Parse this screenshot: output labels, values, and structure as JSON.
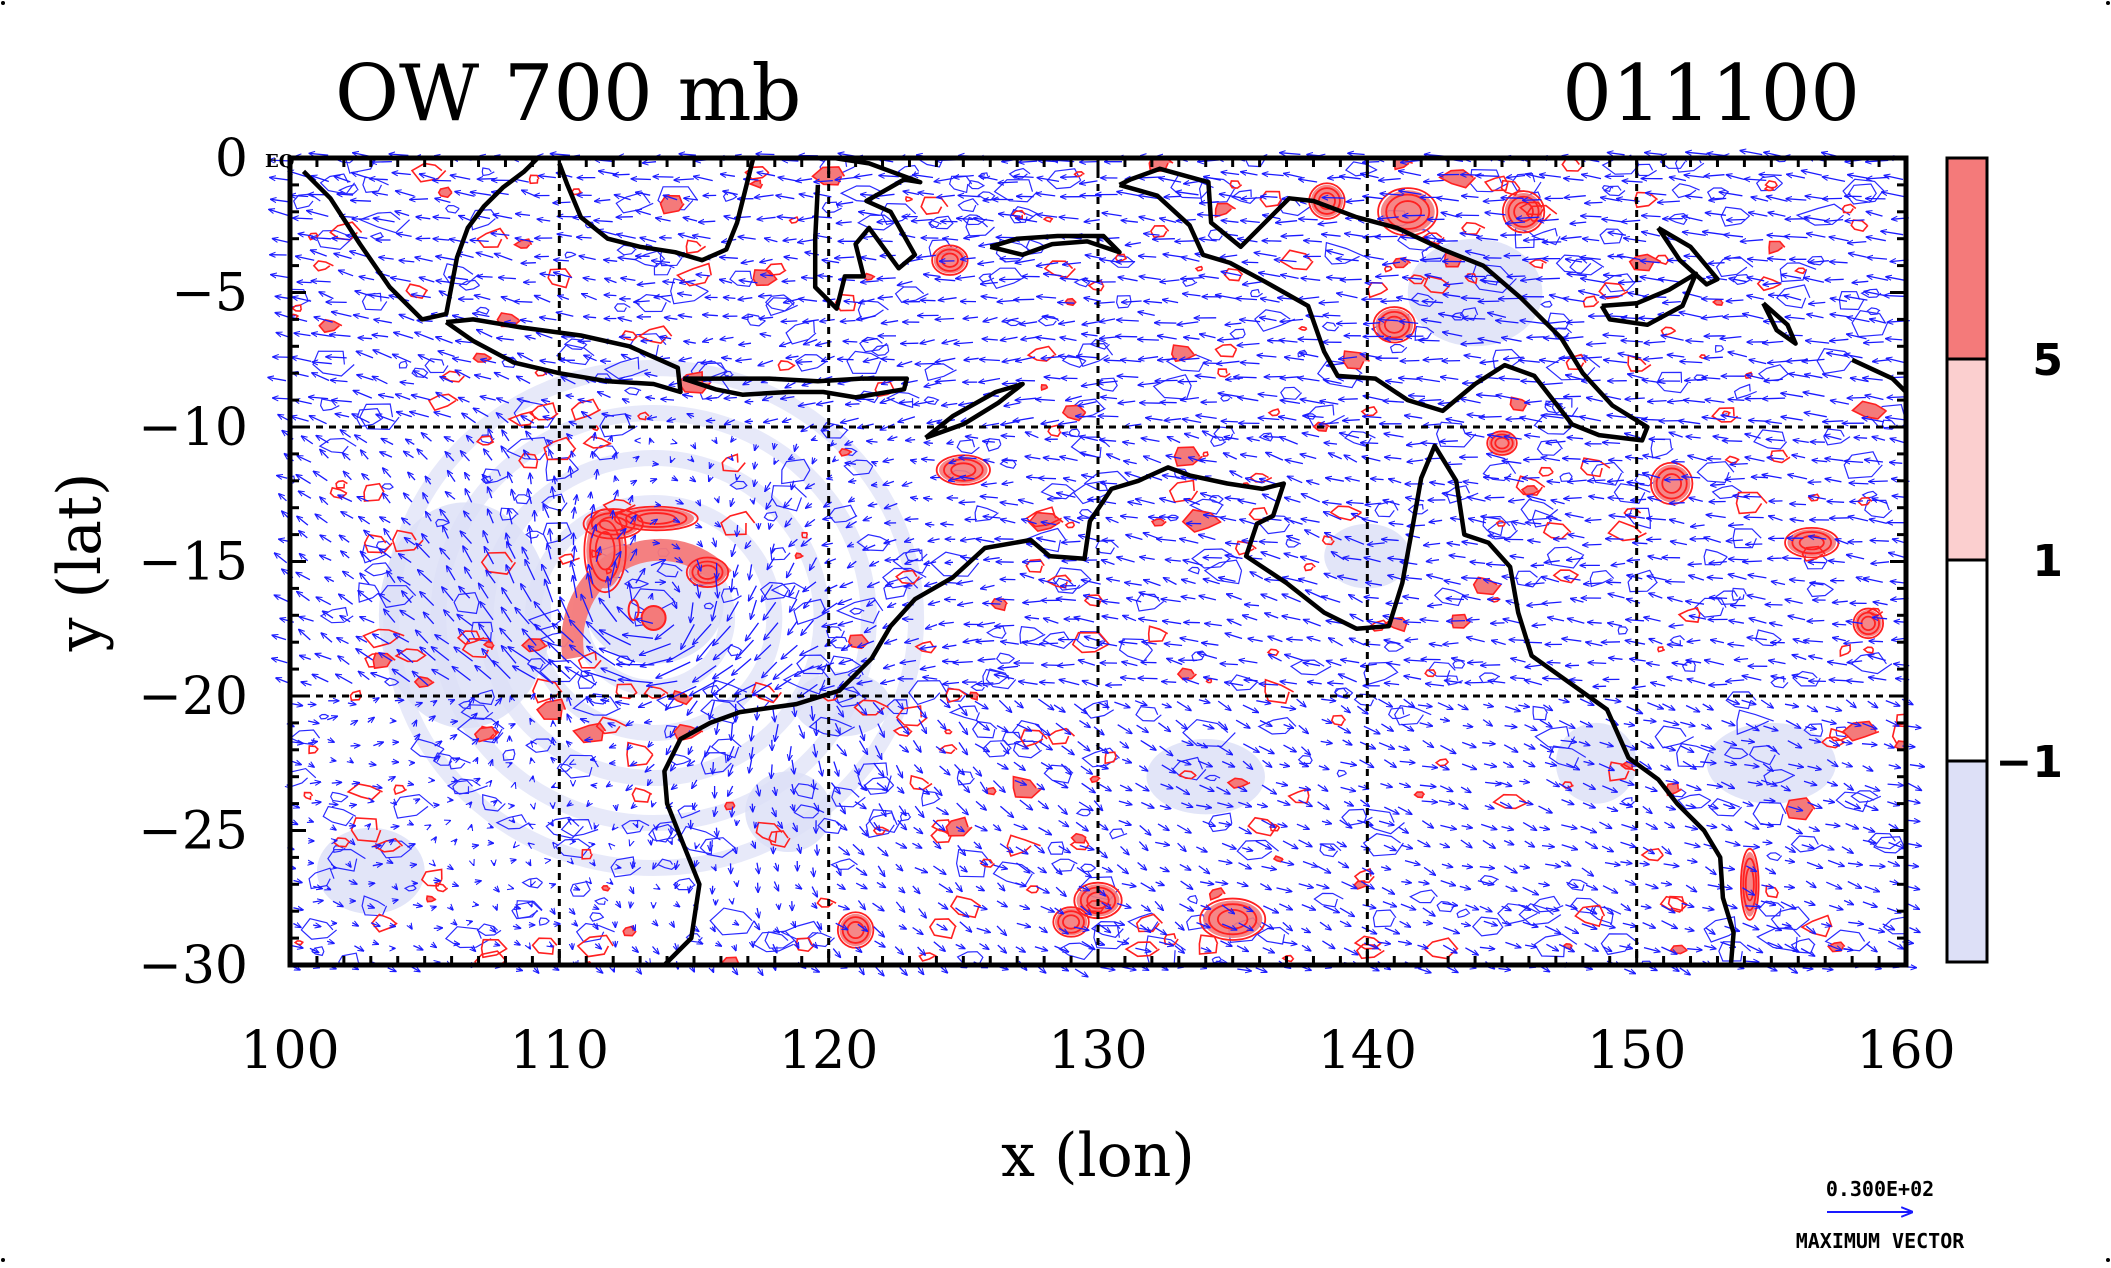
{
  "chart_data": {
    "type": "map",
    "title_left": "OW 700 mb",
    "title_right": "011100",
    "xlabel": "x (lon)",
    "ylabel": "y (lat)",
    "xlim": [
      100,
      160
    ],
    "ylim": [
      -30,
      0
    ],
    "x_ticks": [
      {
        "value": 100,
        "label": "100"
      },
      {
        "value": 110,
        "label": "110"
      },
      {
        "value": 120,
        "label": "120"
      },
      {
        "value": 130,
        "label": "130"
      },
      {
        "value": 140,
        "label": "140"
      },
      {
        "value": 150,
        "label": "150"
      },
      {
        "value": 160,
        "label": "160"
      }
    ],
    "y_ticks": [
      {
        "value": 0,
        "label": "0"
      },
      {
        "value": -5,
        "label": "−5"
      },
      {
        "value": -10,
        "label": "−10"
      },
      {
        "value": -15,
        "label": "−15"
      },
      {
        "value": -20,
        "label": "−20"
      },
      {
        "value": -25,
        "label": "−25"
      },
      {
        "value": -30,
        "label": "−30"
      }
    ],
    "axis_corner_label": "EQ",
    "grid": true,
    "colorbar": {
      "levels": [
        {
          "value": 5,
          "label": "5"
        },
        {
          "value": 1,
          "label": "1"
        },
        {
          "value": -1,
          "label": "−1"
        }
      ],
      "colors": [
        "#f47a7a",
        "#fbcfcf",
        "#ffffff",
        "#dde0f7"
      ]
    },
    "vector_reference": {
      "value_label": "0.300E+02",
      "caption": "MAXIMUM VECTOR"
    },
    "cyclone_center": {
      "lon": 113.5,
      "lat": -17.1
    },
    "colors": {
      "vectors": "#1a1aff",
      "positive_contours": "#ff2020",
      "negative_contours": "#2a2aff",
      "coastline": "#000000",
      "positive_fill": "#f47a7a",
      "negative_fill": "#dde0f7"
    },
    "coastline_segments": [
      {
        "name": "sumatra-malaysia",
        "points": [
          [
            100.5,
            -0.5
          ],
          [
            101.5,
            -1.5
          ],
          [
            102.6,
            -3.2
          ],
          [
            103.7,
            -4.8
          ],
          [
            104.9,
            -6.0
          ],
          [
            105.8,
            -5.8
          ],
          [
            106.2,
            -3.7
          ],
          [
            106.6,
            -2.6
          ],
          [
            107.2,
            -1.8
          ],
          [
            107.9,
            -1.1
          ],
          [
            108.7,
            -0.5
          ],
          [
            109.2,
            0
          ]
        ]
      },
      {
        "name": "borneo-south",
        "points": [
          [
            110,
            -0.2
          ],
          [
            110.3,
            -1.0
          ],
          [
            110.8,
            -2.2
          ],
          [
            111.8,
            -3.0
          ],
          [
            113.0,
            -3.3
          ],
          [
            114.3,
            -3.5
          ],
          [
            115.3,
            -3.8
          ],
          [
            116.2,
            -3.4
          ],
          [
            116.6,
            -2.4
          ],
          [
            116.9,
            -1.2
          ],
          [
            117.2,
            0
          ]
        ]
      },
      {
        "name": "java",
        "points": [
          [
            105.8,
            -6.1
          ],
          [
            106.8,
            -6.8
          ],
          [
            108.3,
            -7.6
          ],
          [
            110.0,
            -8.0
          ],
          [
            111.8,
            -8.3
          ],
          [
            113.5,
            -8.4
          ],
          [
            114.5,
            -8.7
          ],
          [
            114.4,
            -7.8
          ],
          [
            112.6,
            -7.0
          ],
          [
            110.8,
            -6.6
          ],
          [
            108.6,
            -6.3
          ],
          [
            106.8,
            -6.0
          ],
          [
            105.8,
            -6.1
          ]
        ]
      },
      {
        "name": "bali-lombok-sumbawa",
        "points": [
          [
            114.6,
            -8.2
          ],
          [
            115.8,
            -8.6
          ],
          [
            116.8,
            -8.8
          ],
          [
            118.5,
            -8.7
          ],
          [
            119.8,
            -8.7
          ],
          [
            121.0,
            -8.9
          ],
          [
            122.8,
            -8.6
          ],
          [
            122.9,
            -8.2
          ],
          [
            121.2,
            -8.2
          ],
          [
            119.6,
            -8.3
          ],
          [
            117.8,
            -8.2
          ],
          [
            116.1,
            -8.2
          ],
          [
            114.6,
            -8.2
          ]
        ]
      },
      {
        "name": "sulawesi",
        "points": [
          [
            119.6,
            -1.0
          ],
          [
            119.5,
            -3.0
          ],
          [
            119.5,
            -4.8
          ],
          [
            120.3,
            -5.6
          ],
          [
            120.6,
            -4.4
          ],
          [
            121.3,
            -4.4
          ],
          [
            121.0,
            -3.2
          ],
          [
            121.5,
            -2.6
          ],
          [
            122.6,
            -4.1
          ],
          [
            123.2,
            -3.6
          ],
          [
            122.3,
            -2.0
          ],
          [
            121.4,
            -1.6
          ],
          [
            122.8,
            -0.8
          ],
          [
            123.4,
            -0.9
          ],
          [
            121.5,
            -0.2
          ],
          [
            120.2,
            0
          ]
        ]
      },
      {
        "name": "timor",
        "points": [
          [
            123.6,
            -10.4
          ],
          [
            124.6,
            -9.6
          ],
          [
            126.2,
            -8.7
          ],
          [
            127.2,
            -8.4
          ],
          [
            126.3,
            -9.1
          ],
          [
            125.0,
            -9.9
          ],
          [
            123.6,
            -10.4
          ]
        ]
      },
      {
        "name": "seram-buru",
        "points": [
          [
            126.0,
            -3.3
          ],
          [
            127.2,
            -3.6
          ],
          [
            128.3,
            -3.2
          ],
          [
            129.6,
            -3.1
          ],
          [
            130.8,
            -3.5
          ],
          [
            130.2,
            -2.9
          ],
          [
            128.5,
            -2.9
          ],
          [
            127.0,
            -3.0
          ],
          [
            126.0,
            -3.3
          ]
        ]
      },
      {
        "name": "new-guinea",
        "points": [
          [
            130.8,
            -1.0
          ],
          [
            132.2,
            -1.4
          ],
          [
            133.4,
            -2.5
          ],
          [
            133.9,
            -3.6
          ],
          [
            134.9,
            -3.9
          ],
          [
            136.2,
            -4.6
          ],
          [
            137.8,
            -5.5
          ],
          [
            138.4,
            -7.2
          ],
          [
            138.9,
            -8.1
          ],
          [
            140.3,
            -8.2
          ],
          [
            141.5,
            -9.0
          ],
          [
            142.8,
            -9.4
          ],
          [
            144.0,
            -8.4
          ],
          [
            145.1,
            -7.7
          ],
          [
            146.2,
            -8.1
          ],
          [
            147.6,
            -9.9
          ],
          [
            148.6,
            -10.3
          ],
          [
            150.2,
            -10.5
          ],
          [
            150.4,
            -10.0
          ],
          [
            149.1,
            -9.2
          ],
          [
            148.0,
            -8.0
          ],
          [
            147.2,
            -6.7
          ],
          [
            146.4,
            -5.9
          ],
          [
            145.7,
            -5.2
          ],
          [
            144.3,
            -4.0
          ],
          [
            142.8,
            -3.4
          ],
          [
            141.1,
            -2.6
          ],
          [
            139.6,
            -2.2
          ],
          [
            138.0,
            -1.6
          ],
          [
            137.1,
            -1.5
          ],
          [
            135.3,
            -3.3
          ],
          [
            134.2,
            -2.4
          ],
          [
            134.1,
            -0.9
          ],
          [
            132.3,
            -0.4
          ],
          [
            131.2,
            -0.8
          ],
          [
            130.8,
            -1.0
          ]
        ]
      },
      {
        "name": "new-britain",
        "points": [
          [
            148.7,
            -5.5
          ],
          [
            150.0,
            -5.4
          ],
          [
            151.2,
            -4.9
          ],
          [
            152.2,
            -4.3
          ],
          [
            151.7,
            -5.5
          ],
          [
            150.4,
            -6.2
          ],
          [
            149.0,
            -6.0
          ],
          [
            148.7,
            -5.5
          ]
        ]
      },
      {
        "name": "new-ireland",
        "points": [
          [
            150.8,
            -2.6
          ],
          [
            152.0,
            -3.3
          ],
          [
            153.0,
            -4.5
          ],
          [
            152.6,
            -4.7
          ],
          [
            151.6,
            -3.8
          ],
          [
            150.8,
            -2.6
          ]
        ]
      },
      {
        "name": "bougainville-solomons",
        "points": [
          [
            154.7,
            -5.4
          ],
          [
            155.6,
            -6.2
          ],
          [
            155.9,
            -6.9
          ],
          [
            155.2,
            -6.4
          ],
          [
            154.7,
            -5.4
          ]
        ]
      },
      {
        "name": "solomons-east",
        "points": [
          [
            158.0,
            -7.5
          ],
          [
            159.5,
            -8.2
          ],
          [
            160.0,
            -8.7
          ]
        ]
      },
      {
        "name": "australia",
        "points": [
          [
            113.9,
            -30
          ],
          [
            114.9,
            -29.0
          ],
          [
            115.2,
            -27.0
          ],
          [
            114.6,
            -25.5
          ],
          [
            114.0,
            -24.0
          ],
          [
            113.9,
            -22.8
          ],
          [
            114.5,
            -21.6
          ],
          [
            115.6,
            -21.0
          ],
          [
            116.7,
            -20.6
          ],
          [
            118.8,
            -20.3
          ],
          [
            120.4,
            -19.8
          ],
          [
            121.6,
            -18.6
          ],
          [
            122.3,
            -17.4
          ],
          [
            123.2,
            -16.4
          ],
          [
            124.6,
            -15.6
          ],
          [
            125.8,
            -14.5
          ],
          [
            127.5,
            -14.2
          ],
          [
            128.2,
            -14.8
          ],
          [
            129.5,
            -14.9
          ],
          [
            129.7,
            -13.5
          ],
          [
            130.5,
            -12.3
          ],
          [
            131.5,
            -12.0
          ],
          [
            132.6,
            -11.5
          ],
          [
            133.4,
            -11.8
          ],
          [
            134.8,
            -12.1
          ],
          [
            136.1,
            -12.3
          ],
          [
            136.9,
            -12.1
          ],
          [
            136.5,
            -13.3
          ],
          [
            135.9,
            -13.6
          ],
          [
            135.5,
            -14.8
          ],
          [
            137.0,
            -15.8
          ],
          [
            138.4,
            -16.9
          ],
          [
            139.6,
            -17.5
          ],
          [
            140.8,
            -17.4
          ],
          [
            141.3,
            -15.8
          ],
          [
            141.7,
            -13.6
          ],
          [
            142.0,
            -11.9
          ],
          [
            142.5,
            -10.7
          ],
          [
            143.3,
            -12.0
          ],
          [
            143.6,
            -14.0
          ],
          [
            144.5,
            -14.3
          ],
          [
            145.3,
            -15.2
          ],
          [
            145.6,
            -16.9
          ],
          [
            146.1,
            -18.5
          ],
          [
            147.5,
            -19.5
          ],
          [
            148.9,
            -20.5
          ],
          [
            149.7,
            -22.3
          ],
          [
            150.8,
            -23.1
          ],
          [
            151.5,
            -24.0
          ],
          [
            152.5,
            -25.0
          ],
          [
            153.1,
            -26.0
          ],
          [
            153.2,
            -27.5
          ],
          [
            153.6,
            -28.8
          ],
          [
            153.5,
            -30
          ]
        ]
      }
    ],
    "positive_patches": [
      {
        "lon": 111.7,
        "lat": -14.6,
        "rlon": 0.7,
        "rlat": 1.4
      },
      {
        "lon": 112.0,
        "lat": -13.6,
        "rlon": 1.0,
        "rlat": 0.5
      },
      {
        "lon": 113.6,
        "lat": -13.4,
        "rlon": 1.4,
        "rlat": 0.4
      },
      {
        "lon": 115.5,
        "lat": -15.4,
        "rlon": 0.7,
        "rlat": 0.5
      },
      {
        "lon": 125.0,
        "lat": -11.6,
        "rlon": 0.9,
        "rlat": 0.5
      },
      {
        "lon": 138.5,
        "lat": -1.6,
        "rlon": 0.6,
        "rlat": 0.6
      },
      {
        "lon": 141.0,
        "lat": -6.2,
        "rlon": 0.7,
        "rlat": 0.6
      },
      {
        "lon": 141.5,
        "lat": -2.0,
        "rlon": 1.0,
        "rlat": 0.8
      },
      {
        "lon": 145.8,
        "lat": -2.0,
        "rlon": 0.7,
        "rlat": 0.7
      },
      {
        "lon": 151.3,
        "lat": -12.1,
        "rlon": 0.7,
        "rlat": 0.7
      },
      {
        "lon": 156.5,
        "lat": -14.3,
        "rlon": 0.9,
        "rlat": 0.5
      },
      {
        "lon": 158.6,
        "lat": -17.3,
        "rlon": 0.5,
        "rlat": 0.5
      },
      {
        "lon": 121.0,
        "lat": -28.7,
        "rlon": 0.6,
        "rlat": 0.6
      },
      {
        "lon": 135.0,
        "lat": -28.3,
        "rlon": 1.1,
        "rlat": 0.7
      },
      {
        "lon": 130.0,
        "lat": -27.6,
        "rlon": 0.8,
        "rlat": 0.6
      },
      {
        "lon": 154.2,
        "lat": -27.0,
        "rlon": 0.3,
        "rlat": 1.2
      },
      {
        "lon": 129.0,
        "lat": -28.4,
        "rlon": 0.6,
        "rlat": 0.5
      },
      {
        "lon": 145.0,
        "lat": -10.6,
        "rlon": 0.5,
        "rlat": 0.4
      },
      {
        "lon": 124.5,
        "lat": -3.8,
        "rlon": 0.6,
        "rlat": 0.5
      }
    ],
    "negative_patches": [
      {
        "lon": 113.5,
        "lat": -16.6,
        "rlon": 2.6,
        "rlat": 2.2
      },
      {
        "lon": 106.5,
        "lat": -17.0,
        "rlon": 3.2,
        "rlat": 4.2
      },
      {
        "lon": 103.0,
        "lat": -26.5,
        "rlon": 2.0,
        "rlat": 1.6
      },
      {
        "lon": 118.5,
        "lat": -24.3,
        "rlon": 1.6,
        "rlat": 1.5
      },
      {
        "lon": 134.0,
        "lat": -23.0,
        "rlon": 2.2,
        "rlat": 1.4
      },
      {
        "lon": 148.5,
        "lat": -22.5,
        "rlon": 1.5,
        "rlat": 1.5
      },
      {
        "lon": 155.0,
        "lat": -22.5,
        "rlon": 2.4,
        "rlat": 1.5
      },
      {
        "lon": 144.0,
        "lat": -5.0,
        "rlon": 2.5,
        "rlat": 2.0
      },
      {
        "lon": 120.5,
        "lat": -20.3,
        "rlon": 1.8,
        "rlat": 1.2
      },
      {
        "lon": 140.0,
        "lat": -14.8,
        "rlon": 1.6,
        "rlat": 1.2
      }
    ]
  }
}
